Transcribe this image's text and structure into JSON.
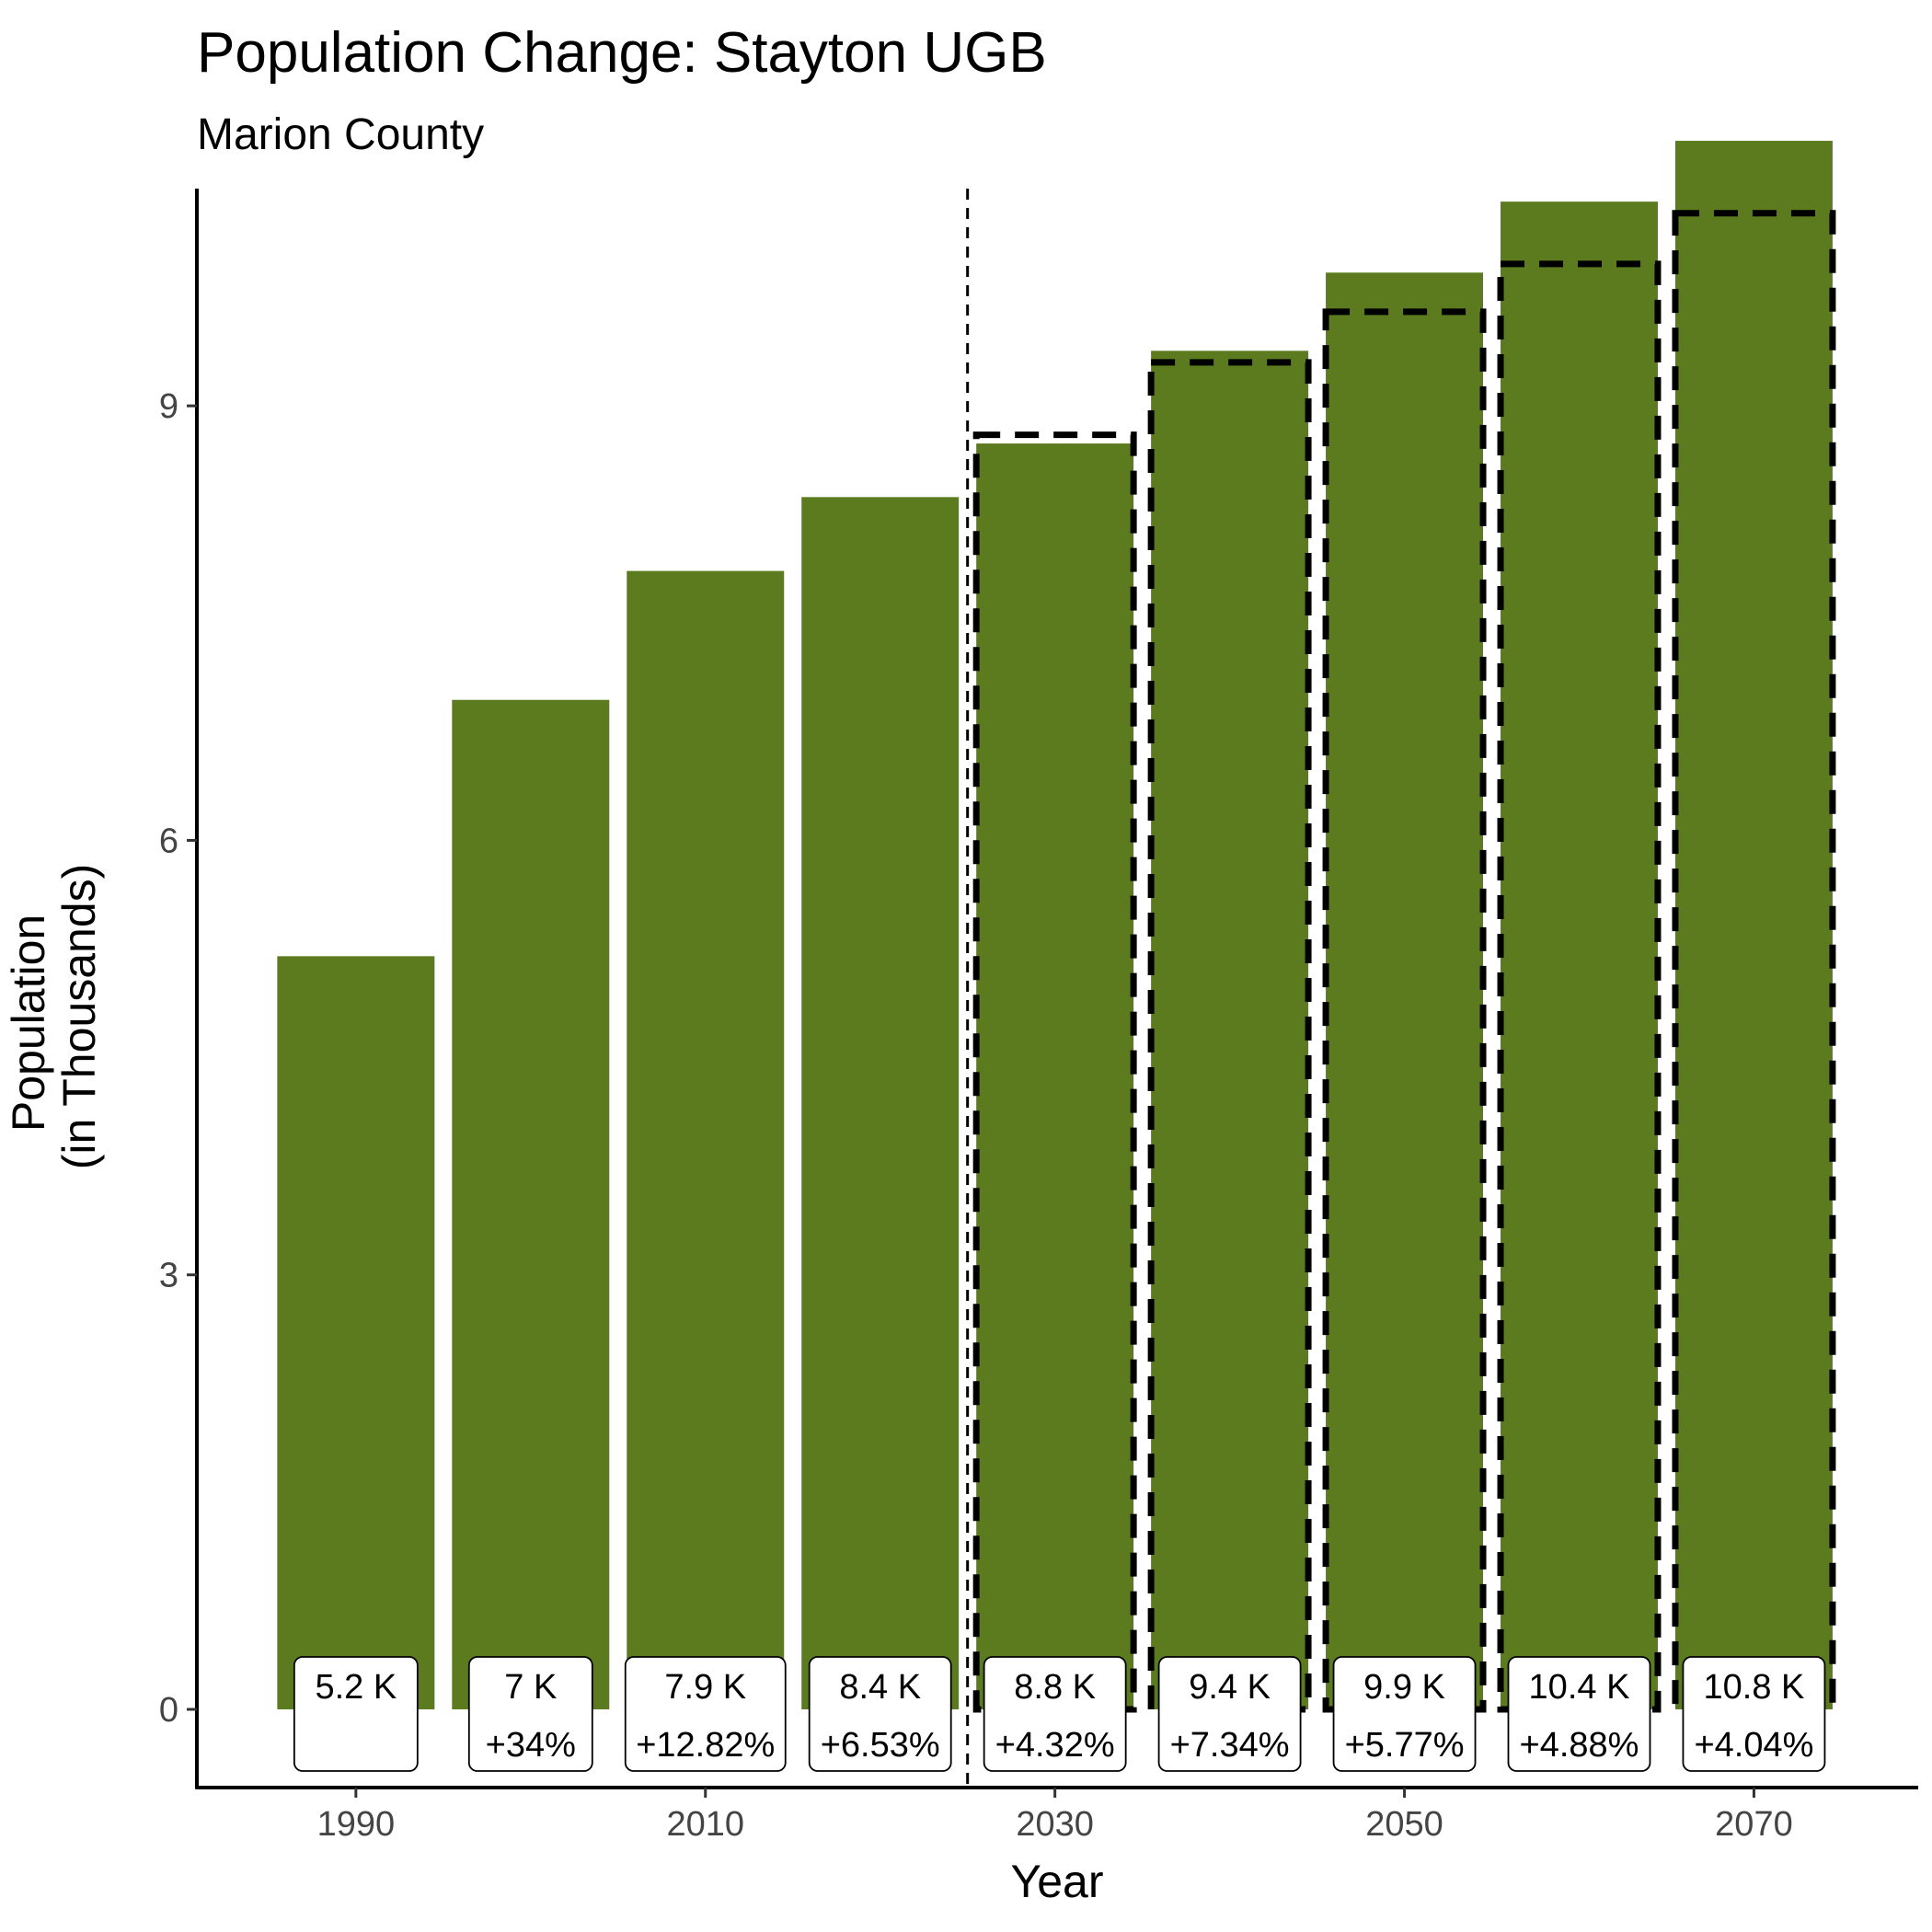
{
  "chart_data": {
    "type": "bar",
    "title": "Population Change: Stayton UGB",
    "subtitle": "Marion County",
    "xlabel": "Year",
    "ylabel_lines": [
      "Population",
      "(in Thousands)"
    ],
    "x": [
      1990,
      2000,
      2010,
      2020,
      2030,
      2040,
      2050,
      2060,
      2070
    ],
    "values": [
      5.2,
      6.97,
      7.86,
      8.37,
      8.74,
      9.38,
      9.92,
      10.41,
      10.83
    ],
    "outline_series": [
      null,
      null,
      null,
      null,
      8.8,
      9.3,
      9.65,
      9.98,
      10.33
    ],
    "labels": [
      {
        "value": "5.2 K",
        "change": ""
      },
      {
        "value": "7 K",
        "change": "+34%"
      },
      {
        "value": "7.9 K",
        "change": "+12.82%"
      },
      {
        "value": "8.4 K",
        "change": "+6.53%"
      },
      {
        "value": "8.8 K",
        "change": "+4.32%"
      },
      {
        "value": "9.4 K",
        "change": "+7.34%"
      },
      {
        "value": "9.9 K",
        "change": "+5.77%"
      },
      {
        "value": "10.4 K",
        "change": "+4.88%"
      },
      {
        "value": "10.8 K",
        "change": "+4.04%"
      }
    ],
    "x_ticks": [
      1990,
      2010,
      2030,
      2050,
      2070
    ],
    "y_ticks": [
      0,
      3,
      6,
      9
    ],
    "xlim": [
      1980.9,
      2079.4
    ],
    "ylim": [
      -0.54,
      10.5
    ],
    "reference_line_x": 2025,
    "grid": false,
    "legend": "none",
    "colors": {
      "bar": "#5b7b1e",
      "outline": "#000000",
      "axis": "#000000"
    }
  }
}
